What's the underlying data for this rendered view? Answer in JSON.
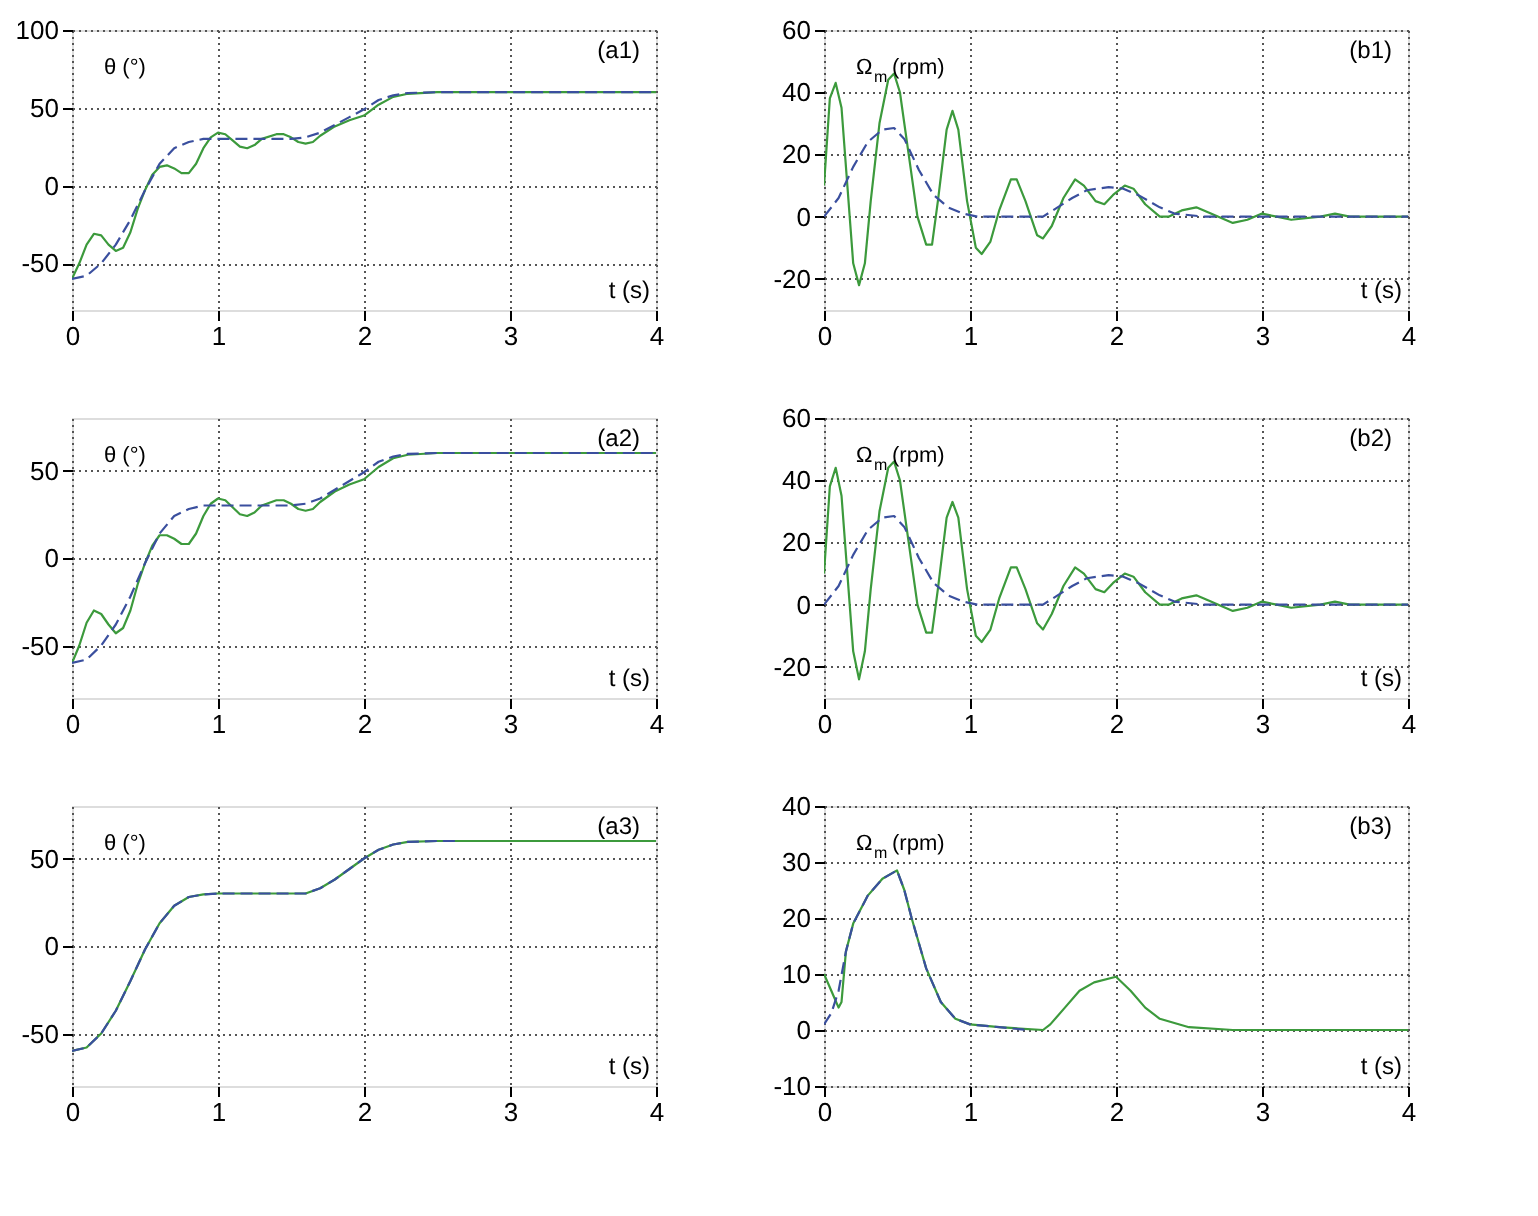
{
  "chart_data": [
    {
      "type": "line",
      "ylabel": "θ (°)",
      "xlabel": "t (s)",
      "annotations": [
        "(a1)"
      ],
      "xlim": [
        0,
        4
      ],
      "xticks": [
        0,
        1,
        2,
        3,
        4
      ],
      "ylim": [
        -80,
        100
      ],
      "yticks": [
        -50,
        0,
        50,
        100
      ],
      "grid": true,
      "series": [
        {
          "color": "#3c9a3c",
          "line_style": "solid",
          "x": [
            0,
            0.05,
            0.1,
            0.15,
            0.2,
            0.25,
            0.3,
            0.35,
            0.4,
            0.45,
            0.5,
            0.55,
            0.6,
            0.65,
            0.7,
            0.75,
            0.8,
            0.85,
            0.9,
            0.95,
            1.0,
            1.05,
            1.1,
            1.15,
            1.2,
            1.25,
            1.3,
            1.4,
            1.45,
            1.5,
            1.55,
            1.6,
            1.65,
            1.7,
            1.8,
            1.9,
            2.0,
            2.1,
            2.2,
            2.3,
            2.5,
            3,
            4
          ],
          "values": [
            -60,
            -50,
            -38,
            -31,
            -32,
            -38,
            -42,
            -40,
            -30,
            -15,
            -3,
            7,
            12,
            13,
            11,
            8,
            8,
            14,
            24,
            31,
            34,
            33,
            29,
            25,
            24,
            26,
            30,
            33,
            33,
            31,
            28,
            27,
            28,
            32,
            38,
            42,
            45,
            52,
            57,
            59,
            60,
            60,
            60
          ]
        },
        {
          "color": "#3a4f9e",
          "line_style": "dashed",
          "x": [
            0,
            0.1,
            0.2,
            0.3,
            0.4,
            0.5,
            0.6,
            0.7,
            0.8,
            0.9,
            1.0,
            1.5,
            1.6,
            1.7,
            1.8,
            1.9,
            2.0,
            2.1,
            2.2,
            2.3,
            2.5,
            3,
            4
          ],
          "values": [
            -60,
            -58,
            -50,
            -38,
            -22,
            -3,
            14,
            24,
            28,
            30,
            30,
            30,
            31,
            34,
            39,
            44,
            49,
            55,
            58,
            59.5,
            60,
            60,
            60
          ]
        }
      ]
    },
    {
      "type": "line",
      "ylabel": "Ω$_{m}$ (rpm)",
      "xlabel": "t (s)",
      "annotations": [
        "(b1)"
      ],
      "xlim": [
        0,
        4
      ],
      "xticks": [
        0,
        1,
        2,
        3,
        4
      ],
      "ylim": [
        -30,
        60
      ],
      "yticks": [
        -20,
        0,
        20,
        40,
        60
      ],
      "grid": true,
      "series": [
        {
          "color": "#3c9a3c",
          "line_style": "solid",
          "x": [
            0,
            0.04,
            0.08,
            0.12,
            0.16,
            0.2,
            0.24,
            0.28,
            0.32,
            0.38,
            0.44,
            0.48,
            0.52,
            0.58,
            0.64,
            0.7,
            0.74,
            0.78,
            0.84,
            0.88,
            0.92,
            0.98,
            1.04,
            1.08,
            1.14,
            1.2,
            1.28,
            1.32,
            1.38,
            1.46,
            1.5,
            1.56,
            1.64,
            1.72,
            1.78,
            1.86,
            1.92,
            1.98,
            2.06,
            2.12,
            2.2,
            2.3,
            2.36,
            2.45,
            2.55,
            2.65,
            2.8,
            2.9,
            3.0,
            3.1,
            3.2,
            3.4,
            3.5,
            3.6,
            4
          ],
          "values": [
            10,
            38,
            43,
            35,
            10,
            -15,
            -22,
            -15,
            5,
            30,
            44,
            46,
            40,
            20,
            0,
            -9,
            -9,
            5,
            28,
            34,
            28,
            5,
            -10,
            -12,
            -8,
            2,
            12,
            12,
            5,
            -6,
            -7,
            -3,
            6,
            12,
            10,
            5,
            4,
            7,
            10,
            9,
            4,
            0,
            0,
            2,
            3,
            1,
            -2,
            -1,
            1,
            0,
            -1,
            0,
            1,
            0,
            0
          ]
        },
        {
          "color": "#3a4f9e",
          "line_style": "dashed",
          "x": [
            0,
            0.1,
            0.2,
            0.3,
            0.4,
            0.48,
            0.55,
            0.65,
            0.75,
            0.85,
            0.95,
            1.05,
            1.5,
            1.6,
            1.7,
            1.8,
            1.95,
            2.05,
            2.15,
            2.3,
            2.4,
            2.6,
            4
          ],
          "values": [
            0,
            6,
            16,
            24,
            28,
            28.5,
            25,
            15,
            7,
            3,
            1,
            0,
            0,
            3,
            6,
            8.5,
            9.5,
            9,
            7,
            3,
            1,
            0,
            0
          ]
        }
      ]
    },
    {
      "type": "line",
      "ylabel": "θ (°)",
      "xlabel": "t (s)",
      "annotations": [
        "(a2)"
      ],
      "xlim": [
        0,
        4
      ],
      "xticks": [
        0,
        1,
        2,
        3,
        4
      ],
      "ylim": [
        -80,
        80
      ],
      "yticks": [
        -50,
        0,
        50
      ],
      "grid": true,
      "series": [
        {
          "color": "#3c9a3c",
          "line_style": "solid",
          "x": [
            0,
            0.05,
            0.1,
            0.15,
            0.2,
            0.25,
            0.3,
            0.35,
            0.4,
            0.45,
            0.5,
            0.55,
            0.6,
            0.65,
            0.7,
            0.75,
            0.8,
            0.85,
            0.9,
            0.95,
            1.0,
            1.05,
            1.1,
            1.15,
            1.2,
            1.25,
            1.3,
            1.4,
            1.45,
            1.5,
            1.55,
            1.6,
            1.65,
            1.7,
            1.8,
            1.9,
            2.0,
            2.1,
            2.2,
            2.3,
            2.5,
            3,
            4
          ],
          "values": [
            -60,
            -50,
            -37,
            -30,
            -32,
            -38,
            -43,
            -40,
            -30,
            -15,
            -3,
            7,
            13,
            13,
            11,
            8,
            8,
            14,
            24,
            31,
            34,
            33,
            29,
            25,
            24,
            26,
            30,
            33,
            33,
            31,
            28,
            27,
            28,
            32,
            38,
            42,
            45,
            52,
            57,
            59,
            60,
            60,
            60
          ]
        },
        {
          "color": "#3a4f9e",
          "line_style": "dashed",
          "x": [
            0,
            0.1,
            0.2,
            0.3,
            0.4,
            0.5,
            0.6,
            0.7,
            0.8,
            0.9,
            1.0,
            1.5,
            1.6,
            1.7,
            1.8,
            1.9,
            2.0,
            2.1,
            2.2,
            2.3,
            2.5,
            3,
            4
          ],
          "values": [
            -60,
            -58,
            -50,
            -38,
            -22,
            -3,
            14,
            24,
            28,
            30,
            30,
            30,
            31,
            34,
            39,
            44,
            49,
            55,
            58,
            59.5,
            60,
            60,
            60
          ]
        }
      ]
    },
    {
      "type": "line",
      "ylabel": "Ω$_{m}$ (rpm)",
      "xlabel": "t (s)",
      "annotations": [
        "(b2)"
      ],
      "xlim": [
        0,
        4
      ],
      "xticks": [
        0,
        1,
        2,
        3,
        4
      ],
      "ylim": [
        -30,
        60
      ],
      "yticks": [
        -20,
        0,
        20,
        40,
        60
      ],
      "grid": true,
      "series": [
        {
          "color": "#3c9a3c",
          "line_style": "solid",
          "x": [
            0,
            0.04,
            0.08,
            0.12,
            0.16,
            0.2,
            0.24,
            0.28,
            0.32,
            0.38,
            0.44,
            0.48,
            0.52,
            0.58,
            0.64,
            0.7,
            0.74,
            0.78,
            0.84,
            0.88,
            0.92,
            0.98,
            1.04,
            1.08,
            1.14,
            1.2,
            1.28,
            1.32,
            1.38,
            1.46,
            1.5,
            1.56,
            1.64,
            1.72,
            1.78,
            1.86,
            1.92,
            1.98,
            2.06,
            2.12,
            2.2,
            2.3,
            2.36,
            2.45,
            2.55,
            2.65,
            2.8,
            2.9,
            3.0,
            3.1,
            3.2,
            3.4,
            3.5,
            3.6,
            4
          ],
          "values": [
            10,
            38,
            44,
            35,
            10,
            -15,
            -24,
            -15,
            5,
            30,
            44,
            46,
            40,
            20,
            0,
            -9,
            -9,
            5,
            28,
            33,
            28,
            5,
            -10,
            -12,
            -8,
            2,
            12,
            12,
            5,
            -6,
            -8,
            -3,
            6,
            12,
            10,
            5,
            4,
            7,
            10,
            9,
            4,
            0,
            0,
            2,
            3,
            1,
            -2,
            -1,
            1,
            0,
            -1,
            0,
            1,
            0,
            0
          ]
        },
        {
          "color": "#3a4f9e",
          "line_style": "dashed",
          "x": [
            0,
            0.1,
            0.2,
            0.3,
            0.4,
            0.48,
            0.55,
            0.65,
            0.75,
            0.85,
            0.95,
            1.05,
            1.5,
            1.6,
            1.7,
            1.8,
            1.95,
            2.05,
            2.15,
            2.3,
            2.4,
            2.6,
            4
          ],
          "values": [
            0,
            6,
            16,
            24,
            28,
            28.5,
            25,
            15,
            7,
            3,
            1,
            0,
            0,
            3,
            6,
            8.5,
            9.5,
            9,
            7,
            3,
            1,
            0,
            0
          ]
        }
      ]
    },
    {
      "type": "line",
      "ylabel": "θ (°)",
      "xlabel": "t (s)",
      "annotations": [
        "(a3)"
      ],
      "xlim": [
        0,
        4
      ],
      "xticks": [
        0,
        1,
        2,
        3,
        4
      ],
      "ylim": [
        -80,
        80
      ],
      "yticks": [
        -50,
        0,
        50
      ],
      "grid": true,
      "series": [
        {
          "color": "#3c9a3c",
          "line_style": "solid",
          "x": [
            0,
            0.1,
            0.2,
            0.3,
            0.4,
            0.5,
            0.6,
            0.7,
            0.8,
            0.9,
            1.0,
            1.6,
            1.7,
            1.8,
            1.9,
            2.0,
            2.1,
            2.2,
            2.3,
            2.5,
            4
          ],
          "values": [
            -60,
            -58,
            -50,
            -37,
            -20,
            -2,
            13,
            23,
            28,
            29.5,
            30,
            30,
            33,
            38,
            44,
            50,
            55,
            58,
            59.5,
            60,
            60
          ]
        },
        {
          "color": "#3a4f9e",
          "line_style": "dashed",
          "x": [
            0,
            0.1,
            0.2,
            0.3,
            0.4,
            0.5,
            0.6,
            0.7,
            0.8,
            0.9,
            1.0,
            1.6,
            1.7,
            1.8,
            1.9,
            2.0,
            2.1,
            2.2,
            2.3,
            2.5,
            2.65
          ],
          "values": [
            -60,
            -58,
            -50,
            -37,
            -20,
            -2,
            13,
            23,
            28,
            29.5,
            30,
            30,
            33,
            38,
            44,
            50,
            55,
            58,
            59.5,
            60,
            60
          ]
        }
      ]
    },
    {
      "type": "line",
      "ylabel": "Ω$_{m}$ (rpm)",
      "xlabel": "t (s)",
      "annotations": [
        "(b3)"
      ],
      "xlim": [
        0,
        4
      ],
      "xticks": [
        0,
        1,
        2,
        3,
        4
      ],
      "ylim": [
        -10,
        40
      ],
      "yticks": [
        -10,
        0,
        10,
        20,
        30,
        40
      ],
      "grid": true,
      "series": [
        {
          "color": "#3c9a3c",
          "line_style": "solid",
          "x": [
            0,
            0.05,
            0.1,
            0.12,
            0.15,
            0.2,
            0.3,
            0.4,
            0.5,
            0.55,
            0.6,
            0.7,
            0.8,
            0.9,
            1.0,
            1.2,
            1.5,
            1.55,
            1.65,
            1.75,
            1.85,
            2.0,
            2.1,
            2.2,
            2.3,
            2.5,
            2.8,
            4
          ],
          "values": [
            10,
            7,
            4,
            5,
            14,
            19,
            24,
            27,
            28.5,
            25,
            20,
            11,
            5,
            2,
            1,
            0.5,
            0,
            1,
            4,
            7,
            8.5,
            9.5,
            7,
            4,
            2,
            0.5,
            0,
            0
          ]
        },
        {
          "color": "#3a4f9e",
          "line_style": "dashed",
          "x": [
            0,
            0.05,
            0.1,
            0.15,
            0.2,
            0.3,
            0.4,
            0.5,
            0.55,
            0.6,
            0.7,
            0.8,
            0.9,
            1.0,
            1.2,
            1.4
          ],
          "values": [
            1,
            3,
            7,
            14,
            19,
            24,
            27,
            28.5,
            25,
            20,
            11,
            5,
            2,
            1,
            0.5,
            0
          ]
        }
      ]
    }
  ]
}
